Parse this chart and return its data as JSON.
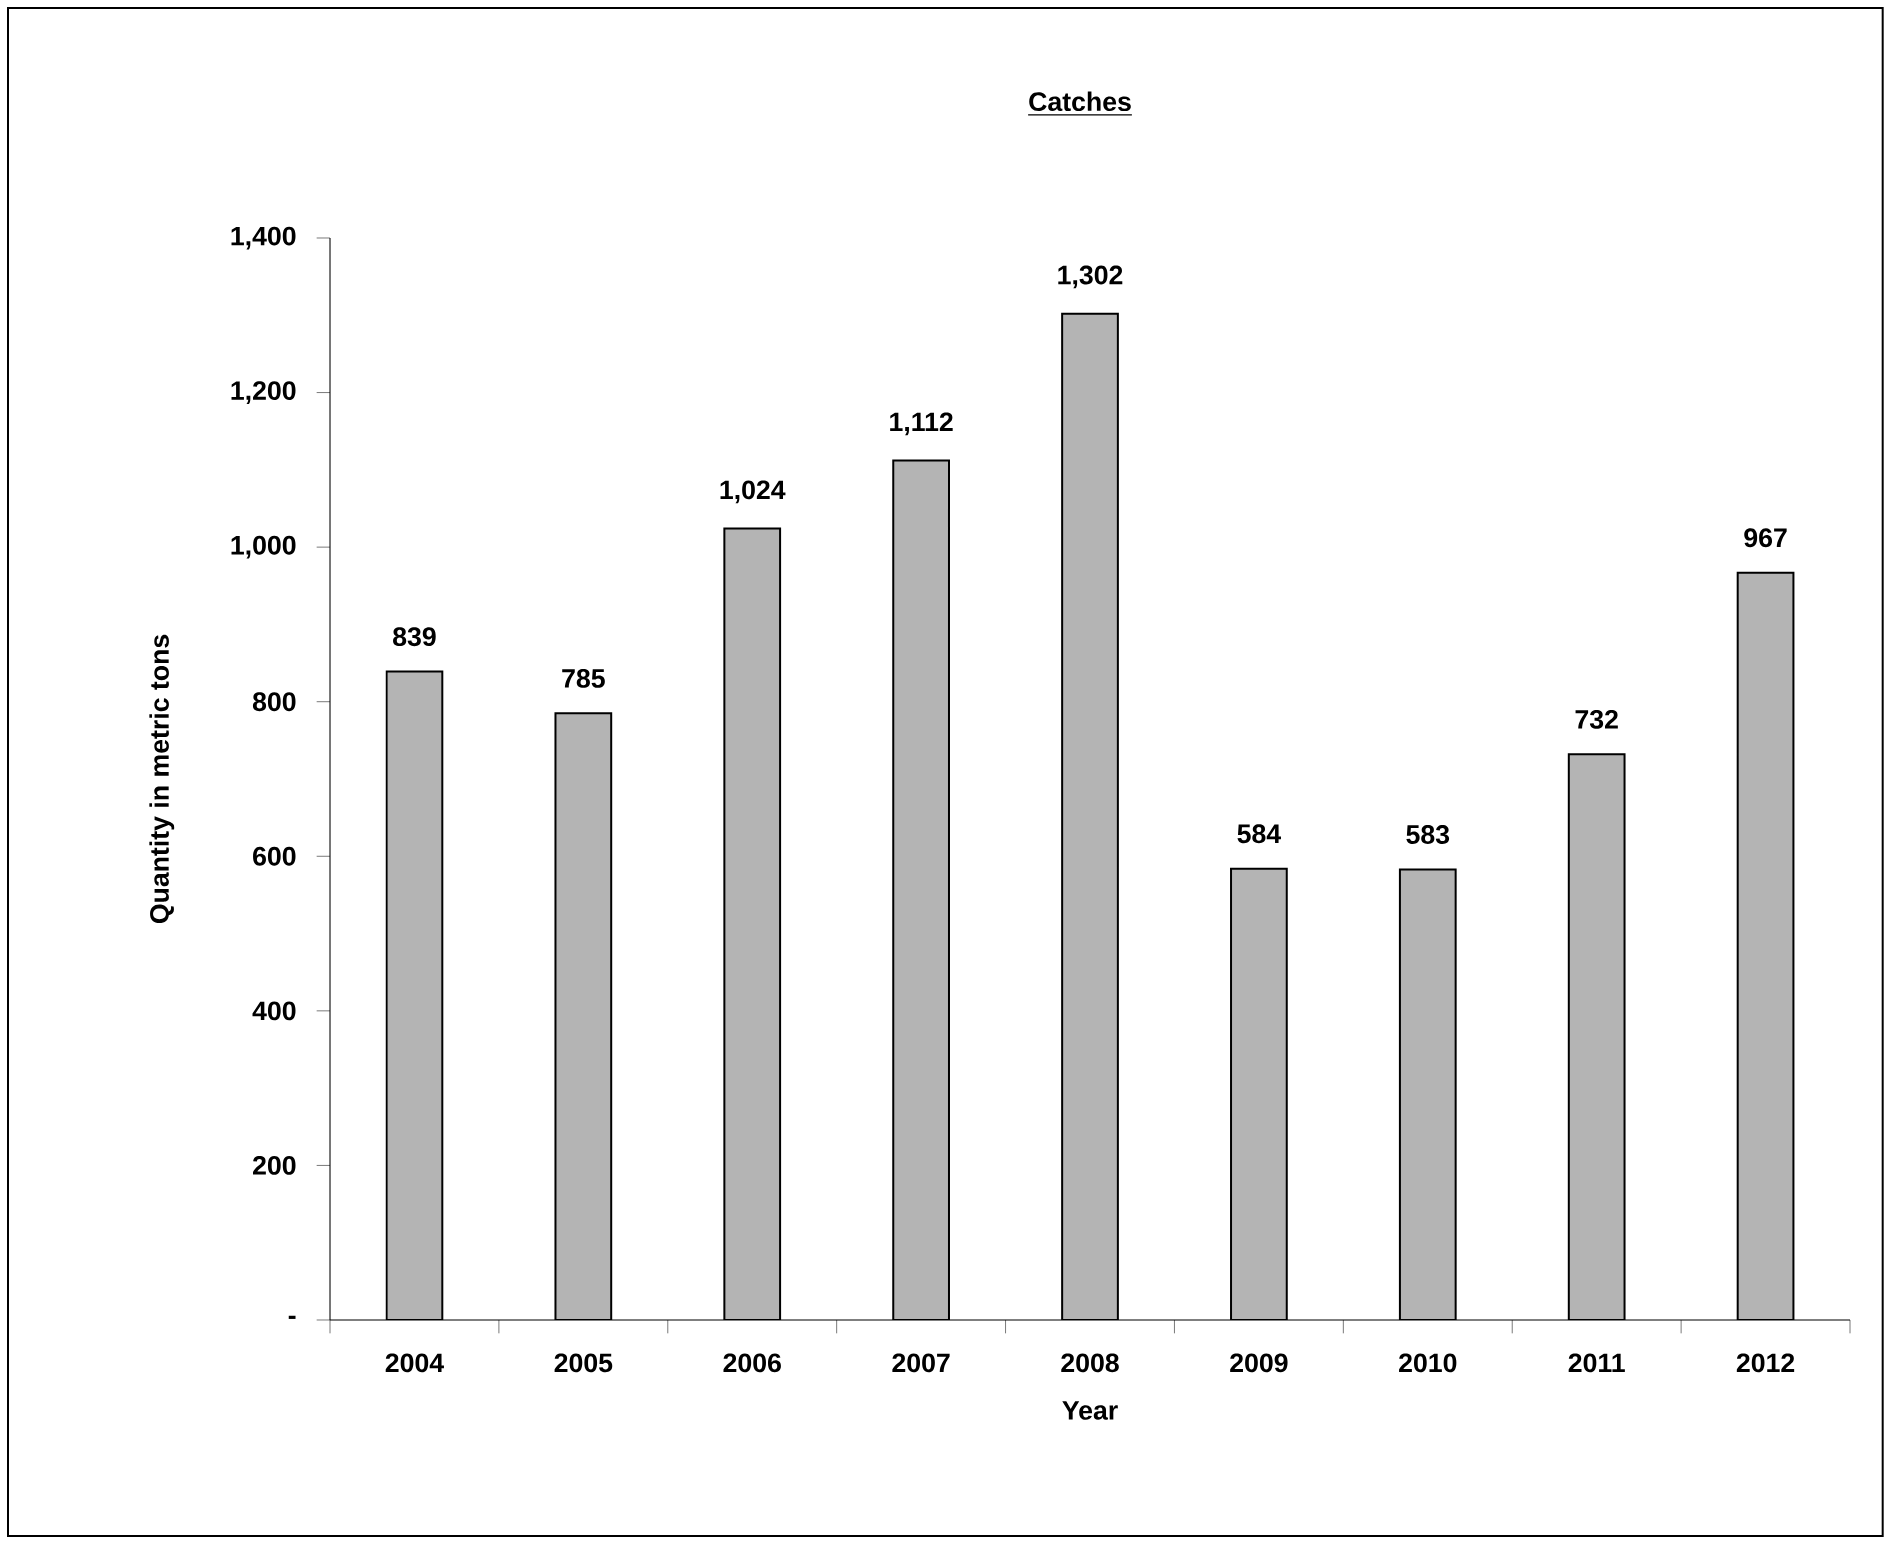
{
  "chart_data": {
    "type": "bar",
    "title": "Catches",
    "xlabel": "Year",
    "ylabel": "Quantity in metric tons",
    "categories": [
      "2004",
      "2005",
      "2006",
      "2007",
      "2008",
      "2009",
      "2010",
      "2011",
      "2012"
    ],
    "values": [
      839,
      785,
      1024,
      1112,
      1302,
      584,
      583,
      732,
      967
    ],
    "value_labels": [
      "839",
      "785",
      "1,024",
      "1,112",
      "1,302",
      "584",
      "583",
      "732",
      "967"
    ],
    "color": "#b4b4b4",
    "ylim": [
      0,
      1400
    ],
    "yticks": [
      {
        "value": 0,
        "label": "-"
      },
      {
        "value": 200,
        "label": "200"
      },
      {
        "value": 400,
        "label": "400"
      },
      {
        "value": 600,
        "label": "600"
      },
      {
        "value": 800,
        "label": "800"
      },
      {
        "value": 1000,
        "label": "1,000"
      },
      {
        "value": 1200,
        "label": "1,200"
      },
      {
        "value": 1400,
        "label": "1,400"
      }
    ],
    "grid": false
  }
}
